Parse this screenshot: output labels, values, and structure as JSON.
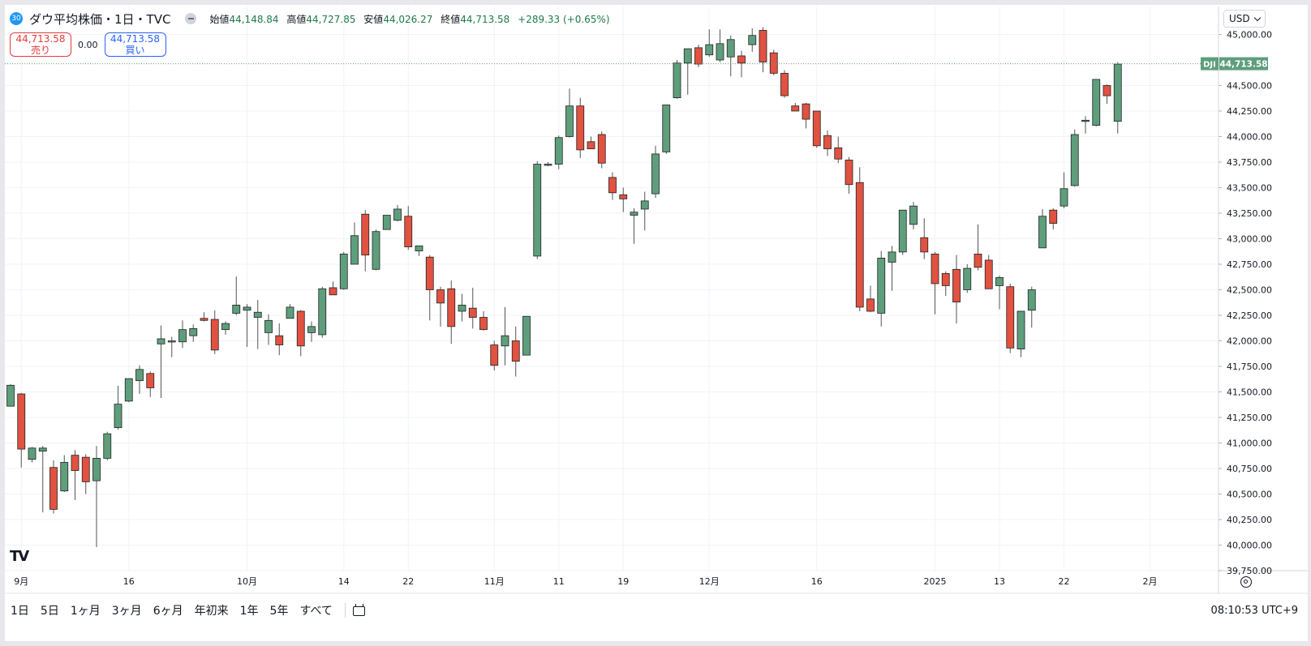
{
  "legend": {
    "badge": "30",
    "title": "ダウ平均株価・1日・TVC",
    "open_label": "始値",
    "open": "44,148.84",
    "high_label": "高値",
    "high": "44,727.85",
    "low_label": "安値",
    "low": "44,026.27",
    "close_label": "終値",
    "close": "44,713.58",
    "change": "+289.33 (+0.65%)"
  },
  "trade": {
    "sell_price": "44,713.58",
    "sell_label": "売り",
    "spread": "0.00",
    "buy_price": "44,713.58",
    "buy_label": "買い"
  },
  "currency": "USD",
  "price_tag": {
    "symbol": "DJI",
    "value": "44,713.58"
  },
  "logo": "TV",
  "bottom": {
    "ranges": [
      "1日",
      "5日",
      "1ヶ月",
      "3ヶ月",
      "6ヶ月",
      "年初来",
      "1年",
      "5年",
      "すべて"
    ],
    "clock": "08:10:53 UTC+9"
  },
  "colors": {
    "up": "#5e9e7c",
    "down": "#e15241",
    "wick": "#555555",
    "grid": "#f0f3fa",
    "last_line": "#5e9e7c"
  },
  "chart_data": {
    "type": "candlestick",
    "ylim": [
      39750,
      45250
    ],
    "y_ticks": [
      "39,750.00",
      "40,000.00",
      "40,250.00",
      "40,500.00",
      "40,750.00",
      "41,000.00",
      "41,250.00",
      "41,500.00",
      "41,750.00",
      "42,000.00",
      "42,250.00",
      "42,500.00",
      "42,750.00",
      "43,000.00",
      "43,250.00",
      "43,500.00",
      "43,750.00",
      "44,000.00",
      "44,250.00",
      "44,500.00",
      "45,000.00"
    ],
    "x_ticks": [
      {
        "label": "9月",
        "index": 1
      },
      {
        "label": "16",
        "index": 11
      },
      {
        "label": "10月",
        "index": 22
      },
      {
        "label": "14",
        "index": 31
      },
      {
        "label": "22",
        "index": 37
      },
      {
        "label": "11月",
        "index": 45
      },
      {
        "label": "11",
        "index": 51
      },
      {
        "label": "19",
        "index": 57
      },
      {
        "label": "12月",
        "index": 65
      },
      {
        "label": "16",
        "index": 75
      },
      {
        "label": "2025",
        "index": 86
      },
      {
        "label": "13",
        "index": 92
      },
      {
        "label": "22",
        "index": 98
      },
      {
        "label": "2月",
        "index": 106
      }
    ],
    "last_price": 44713.58,
    "candles": [
      [
        41360,
        41575,
        41357,
        41565
      ],
      [
        41480,
        41490,
        40760,
        40940
      ],
      [
        40840,
        40960,
        40810,
        40950
      ],
      [
        40920,
        40970,
        40320,
        40950
      ],
      [
        40760,
        40830,
        40310,
        40350
      ],
      [
        40530,
        40880,
        40520,
        40810
      ],
      [
        40880,
        40930,
        40440,
        40730
      ],
      [
        40860,
        40890,
        40500,
        40620
      ],
      [
        40630,
        40970,
        39980,
        40850
      ],
      [
        40850,
        41110,
        40830,
        41090
      ],
      [
        41150,
        41560,
        41130,
        41380
      ],
      [
        41410,
        41620,
        41400,
        41630
      ],
      [
        41610,
        41760,
        41480,
        41720
      ],
      [
        41680,
        41700,
        41450,
        41540
      ],
      [
        41970,
        42150,
        41440,
        42020
      ],
      [
        41990,
        42040,
        41840,
        42000
      ],
      [
        41990,
        42200,
        41930,
        42110
      ],
      [
        42050,
        42160,
        41990,
        42120
      ],
      [
        42220,
        42280,
        42190,
        42200
      ],
      [
        42210,
        42300,
        41870,
        41910
      ],
      [
        42110,
        42190,
        42060,
        42170
      ],
      [
        42270,
        42630,
        42250,
        42350
      ],
      [
        42300,
        42360,
        41940,
        42330
      ],
      [
        42230,
        42400,
        41920,
        42280
      ],
      [
        42080,
        42260,
        41960,
        42200
      ],
      [
        42050,
        42170,
        41860,
        41960
      ],
      [
        42220,
        42360,
        42220,
        42330
      ],
      [
        42290,
        42300,
        41850,
        41950
      ],
      [
        42080,
        42190,
        41990,
        42140
      ],
      [
        42060,
        42530,
        42030,
        42510
      ],
      [
        42520,
        42580,
        42450,
        42450
      ],
      [
        42510,
        42870,
        42500,
        42850
      ],
      [
        42750,
        43160,
        42750,
        43030
      ],
      [
        43240,
        43280,
        42680,
        42840
      ],
      [
        42700,
        43090,
        42690,
        43070
      ],
      [
        43090,
        43220,
        43090,
        43230
      ],
      [
        43180,
        43330,
        43170,
        43290
      ],
      [
        43220,
        43320,
        42890,
        42920
      ],
      [
        42880,
        42920,
        42830,
        42930
      ],
      [
        42820,
        42840,
        42200,
        42500
      ],
      [
        42500,
        42530,
        42140,
        42370
      ],
      [
        42510,
        42590,
        41970,
        42140
      ],
      [
        42290,
        42460,
        42190,
        42350
      ],
      [
        42320,
        42520,
        42120,
        42230
      ],
      [
        42230,
        42290,
        42100,
        42110
      ],
      [
        41960,
        42000,
        41710,
        41760
      ],
      [
        41950,
        42330,
        41760,
        42050
      ],
      [
        42000,
        42140,
        41650,
        41800
      ],
      [
        41860,
        42220,
        41860,
        42240
      ],
      [
        42830,
        43760,
        42800,
        43730
      ],
      [
        43730,
        43750,
        43710,
        43730
      ],
      [
        43730,
        44010,
        43680,
        43990
      ],
      [
        44000,
        44470,
        43990,
        44300
      ],
      [
        44300,
        44380,
        43790,
        43870
      ],
      [
        43950,
        44000,
        43930,
        43880
      ],
      [
        44020,
        44050,
        43690,
        43740
      ],
      [
        43600,
        43650,
        43380,
        43450
      ],
      [
        43430,
        43500,
        43260,
        43390
      ],
      [
        43230,
        43300,
        42950,
        43260
      ],
      [
        43290,
        43460,
        43080,
        43370
      ],
      [
        43440,
        43910,
        43400,
        43830
      ],
      [
        43850,
        44300,
        43830,
        44310
      ],
      [
        44380,
        44750,
        44370,
        44720
      ],
      [
        44720,
        44830,
        44410,
        44860
      ],
      [
        44870,
        44900,
        44680,
        44710
      ],
      [
        44800,
        45050,
        44780,
        44900
      ],
      [
        44750,
        45050,
        44730,
        44910
      ],
      [
        44780,
        44990,
        44590,
        44950
      ],
      [
        44790,
        44840,
        44580,
        44720
      ],
      [
        44900,
        45060,
        44830,
        44990
      ],
      [
        45040,
        45070,
        44630,
        44730
      ],
      [
        44820,
        44850,
        44600,
        44620
      ],
      [
        44620,
        44650,
        44380,
        44400
      ],
      [
        44300,
        44330,
        44270,
        44250
      ],
      [
        44320,
        44330,
        44080,
        44170
      ],
      [
        44250,
        44230,
        43890,
        43910
      ],
      [
        44010,
        44060,
        43810,
        43880
      ],
      [
        43890,
        44000,
        43740,
        43780
      ],
      [
        43770,
        43800,
        43440,
        43530
      ],
      [
        43550,
        43700,
        42290,
        42330
      ],
      [
        42410,
        42540,
        42280,
        42290
      ],
      [
        42270,
        42880,
        42140,
        42810
      ],
      [
        42770,
        42930,
        42490,
        42870
      ],
      [
        42870,
        43240,
        42840,
        43280
      ],
      [
        43140,
        43360,
        43090,
        43320
      ],
      [
        43010,
        43200,
        42800,
        42870
      ],
      [
        42850,
        42870,
        42260,
        42560
      ],
      [
        42660,
        42680,
        42440,
        42540
      ],
      [
        42700,
        42840,
        42170,
        42380
      ],
      [
        42500,
        42750,
        42470,
        42710
      ],
      [
        42850,
        43140,
        42690,
        42720
      ],
      [
        42790,
        42840,
        42510,
        42510
      ],
      [
        42540,
        42640,
        42310,
        42620
      ],
      [
        42530,
        42560,
        41880,
        41930
      ],
      [
        41920,
        42290,
        41840,
        42290
      ],
      [
        42300,
        42530,
        42130,
        42500
      ],
      [
        42910,
        43290,
        42910,
        43220
      ],
      [
        43280,
        43300,
        43090,
        43150
      ],
      [
        43320,
        43650,
        43300,
        43490
      ],
      [
        43520,
        44070,
        43510,
        44020
      ],
      [
        44150,
        44200,
        44030,
        44160
      ],
      [
        44110,
        44560,
        44100,
        44560
      ],
      [
        44500,
        44510,
        44320,
        44400
      ],
      [
        44150,
        44730,
        44030,
        44710
      ]
    ]
  }
}
